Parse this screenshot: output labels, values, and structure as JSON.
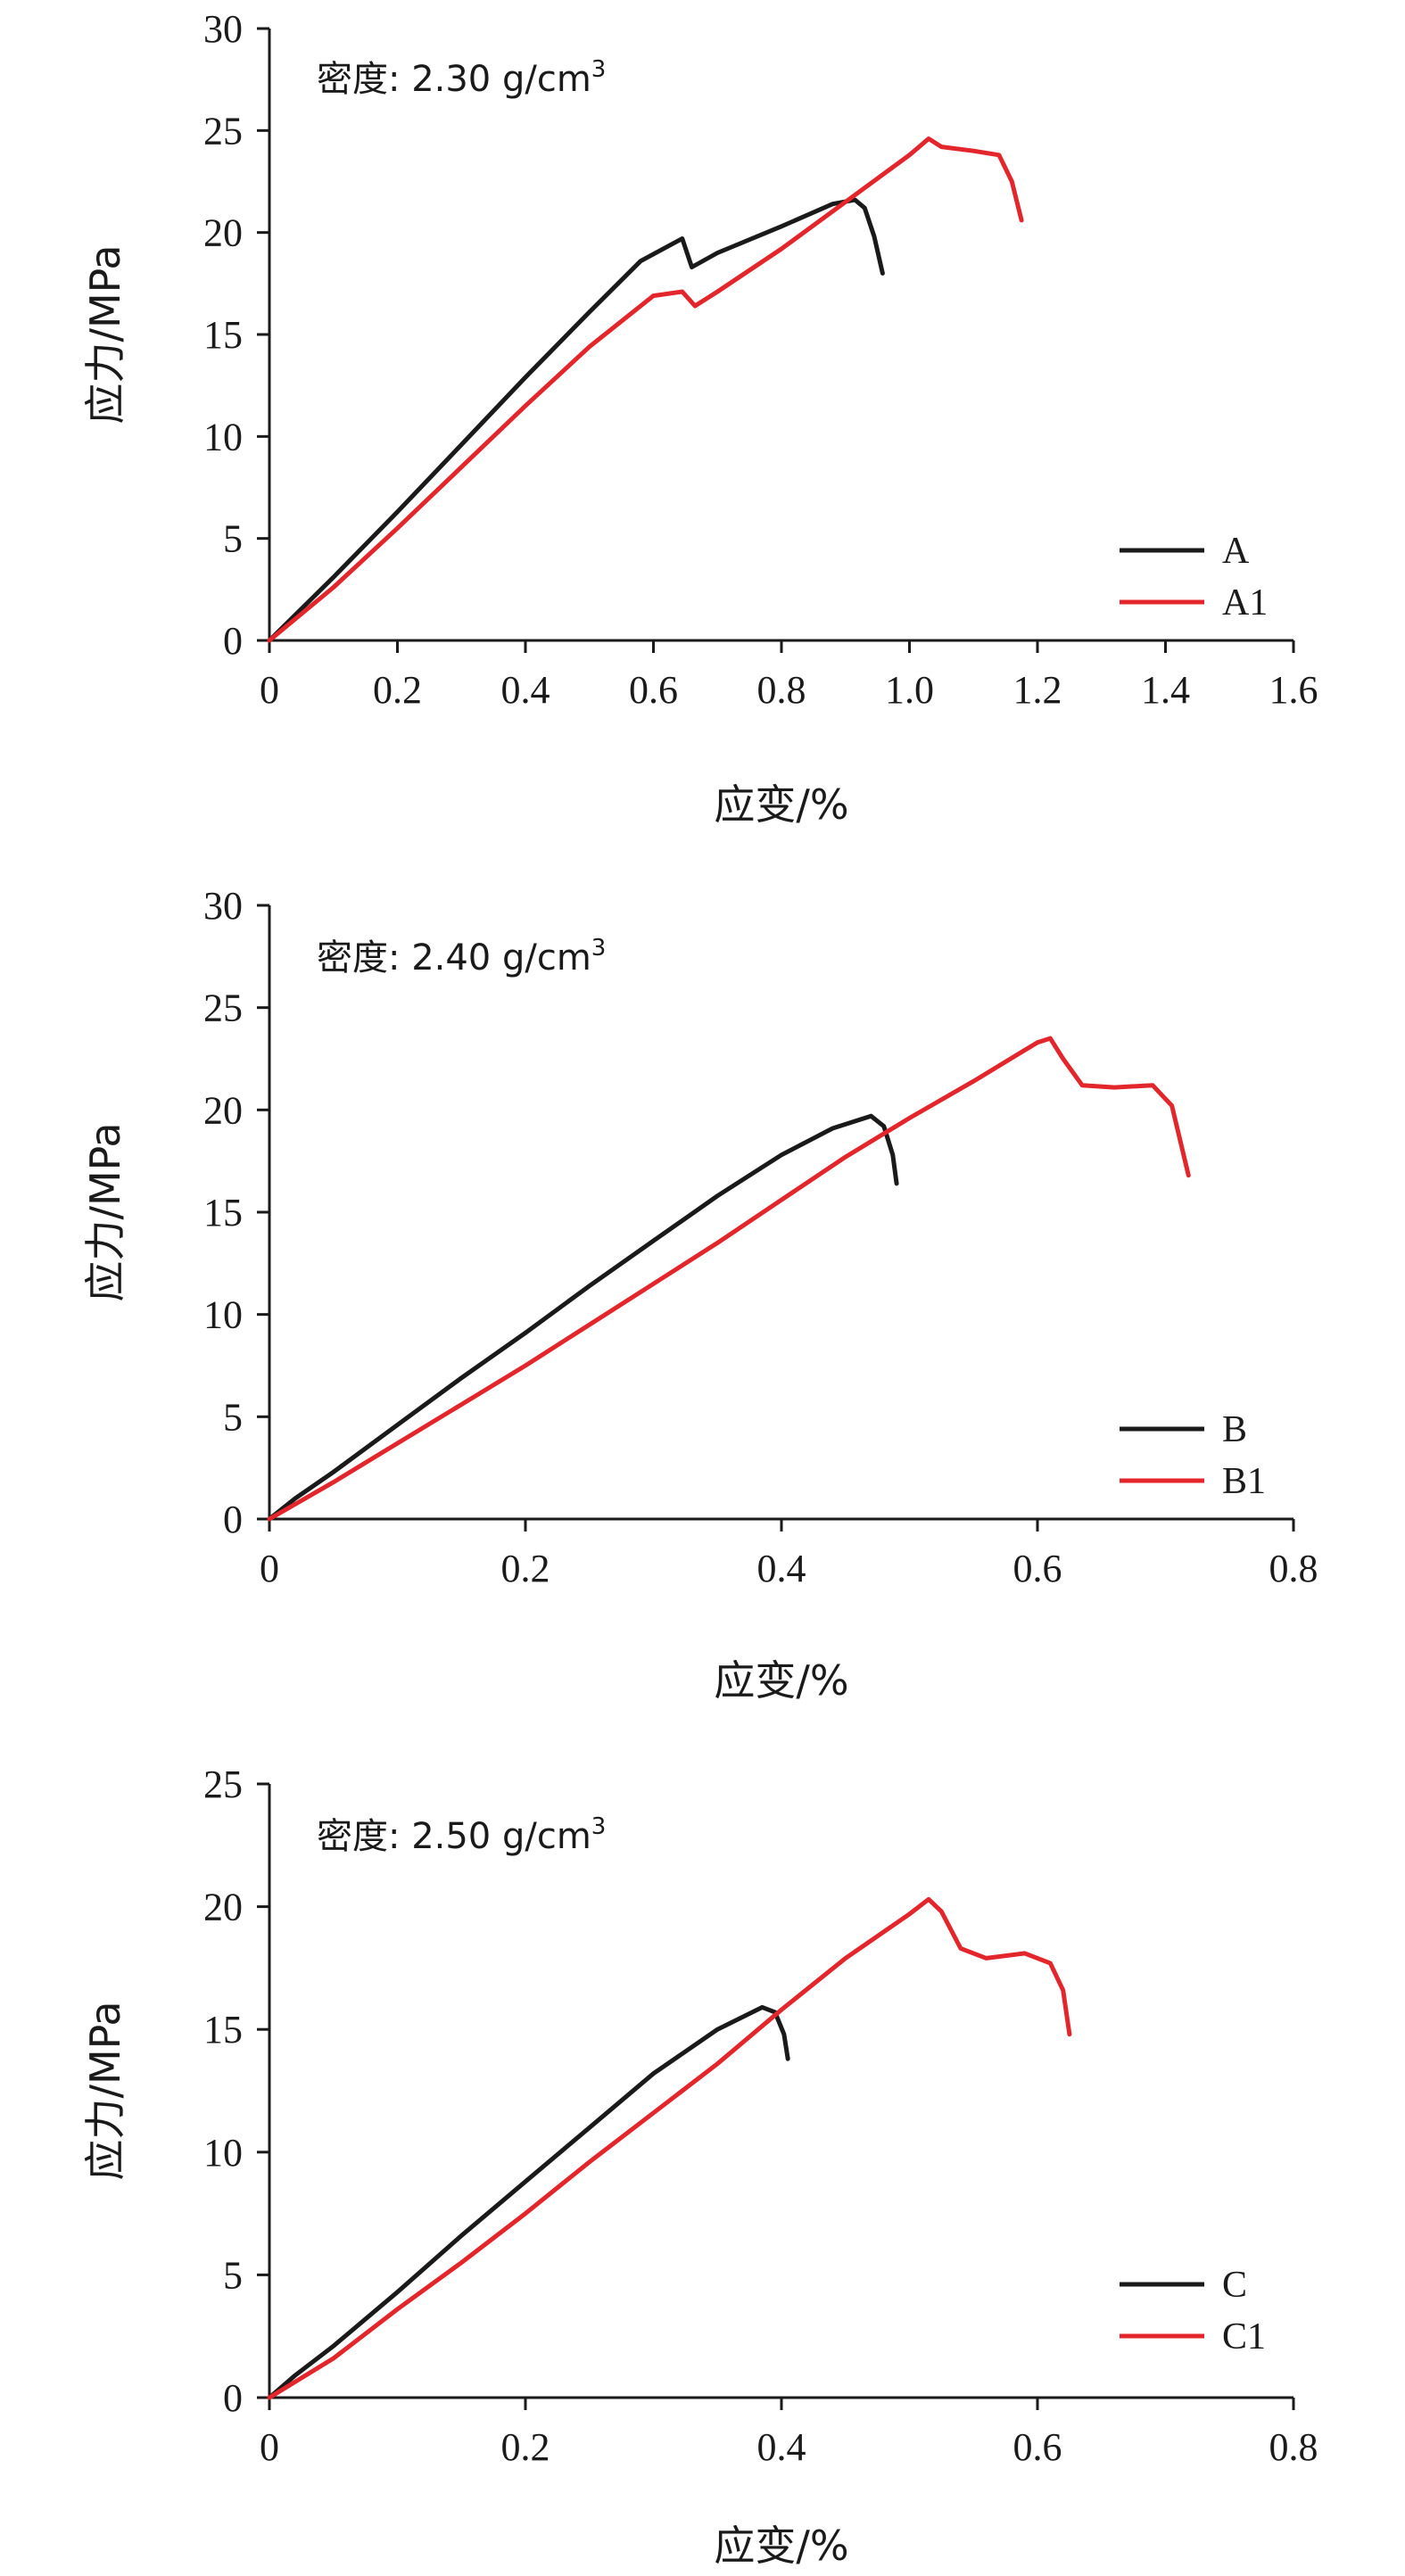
{
  "colors": {
    "black_series": "#1a1a1a",
    "red_series": "#e3262b",
    "axis": "#1a1a1a"
  },
  "chart_data": [
    {
      "type": "line",
      "title": "",
      "annotation": {
        "label": "密度: 2.30 g/cm",
        "superscript": "3"
      },
      "xlabel": "应变/%",
      "ylabel": "应力/MPa",
      "xlim": [
        0,
        1.6
      ],
      "ylim": [
        0,
        30
      ],
      "xticks": [
        "0",
        "0.2",
        "0.4",
        "0.6",
        "0.8",
        "1.0",
        "1.2",
        "1.4",
        "1.6"
      ],
      "yticks": [
        "0",
        "5",
        "10",
        "15",
        "20",
        "25",
        "30"
      ],
      "legend_position": "bottom-right",
      "series": [
        {
          "name": "A",
          "color": "#1a1a1a",
          "points": [
            [
              0,
              0
            ],
            [
              0.1,
              3.1
            ],
            [
              0.2,
              6.3
            ],
            [
              0.3,
              9.6
            ],
            [
              0.4,
              12.9
            ],
            [
              0.5,
              16.1
            ],
            [
              0.58,
              18.6
            ],
            [
              0.645,
              19.7
            ],
            [
              0.66,
              18.3
            ],
            [
              0.7,
              19.0
            ],
            [
              0.8,
              20.3
            ],
            [
              0.88,
              21.4
            ],
            [
              0.915,
              21.6
            ],
            [
              0.93,
              21.2
            ],
            [
              0.945,
              19.8
            ],
            [
              0.958,
              18.0
            ]
          ]
        },
        {
          "name": "A1",
          "color": "#e3262b",
          "points": [
            [
              0,
              0
            ],
            [
              0.1,
              2.6
            ],
            [
              0.2,
              5.5
            ],
            [
              0.3,
              8.5
            ],
            [
              0.4,
              11.5
            ],
            [
              0.5,
              14.4
            ],
            [
              0.6,
              16.9
            ],
            [
              0.645,
              17.1
            ],
            [
              0.665,
              16.4
            ],
            [
              0.7,
              17.1
            ],
            [
              0.8,
              19.2
            ],
            [
              0.9,
              21.5
            ],
            [
              1.0,
              23.8
            ],
            [
              1.03,
              24.6
            ],
            [
              1.05,
              24.2
            ],
            [
              1.1,
              24.0
            ],
            [
              1.14,
              23.8
            ],
            [
              1.16,
              22.5
            ],
            [
              1.175,
              20.6
            ]
          ]
        }
      ]
    },
    {
      "type": "line",
      "title": "",
      "annotation": {
        "label": "密度: 2.40 g/cm",
        "superscript": "3"
      },
      "xlabel": "应变/%",
      "ylabel": "应力/MPa",
      "xlim": [
        0,
        0.8
      ],
      "ylim": [
        0,
        30
      ],
      "xticks": [
        "0",
        "0.2",
        "0.4",
        "0.6",
        "0.8"
      ],
      "yticks": [
        "0",
        "5",
        "10",
        "15",
        "20",
        "25",
        "30"
      ],
      "legend_position": "bottom-right",
      "series": [
        {
          "name": "B",
          "color": "#1a1a1a",
          "points": [
            [
              0,
              0
            ],
            [
              0.02,
              1.0
            ],
            [
              0.05,
              2.3
            ],
            [
              0.1,
              4.6
            ],
            [
              0.15,
              6.9
            ],
            [
              0.2,
              9.1
            ],
            [
              0.25,
              11.4
            ],
            [
              0.3,
              13.6
            ],
            [
              0.35,
              15.8
            ],
            [
              0.4,
              17.8
            ],
            [
              0.44,
              19.1
            ],
            [
              0.47,
              19.7
            ],
            [
              0.48,
              19.2
            ],
            [
              0.487,
              17.8
            ],
            [
              0.49,
              16.4
            ]
          ]
        },
        {
          "name": "B1",
          "color": "#e3262b",
          "points": [
            [
              0,
              0
            ],
            [
              0.05,
              1.8
            ],
            [
              0.1,
              3.7
            ],
            [
              0.15,
              5.6
            ],
            [
              0.2,
              7.5
            ],
            [
              0.25,
              9.5
            ],
            [
              0.3,
              11.5
            ],
            [
              0.35,
              13.5
            ],
            [
              0.4,
              15.6
            ],
            [
              0.45,
              17.7
            ],
            [
              0.5,
              19.6
            ],
            [
              0.55,
              21.4
            ],
            [
              0.6,
              23.3
            ],
            [
              0.61,
              23.5
            ],
            [
              0.62,
              22.5
            ],
            [
              0.635,
              21.2
            ],
            [
              0.66,
              21.1
            ],
            [
              0.69,
              21.2
            ],
            [
              0.705,
              20.2
            ],
            [
              0.718,
              16.8
            ]
          ]
        }
      ]
    },
    {
      "type": "line",
      "title": "",
      "annotation": {
        "label": "密度: 2.50 g/cm",
        "superscript": "3"
      },
      "xlabel": "应变/%",
      "ylabel": "应力/MPa",
      "xlim": [
        0,
        0.8
      ],
      "ylim": [
        0,
        25
      ],
      "xticks": [
        "0",
        "0.2",
        "0.4",
        "0.6",
        "0.8"
      ],
      "yticks": [
        "0",
        "5",
        "10",
        "15",
        "20",
        "25"
      ],
      "legend_position": "bottom-right",
      "series": [
        {
          "name": "C",
          "color": "#1a1a1a",
          "points": [
            [
              0,
              0
            ],
            [
              0.02,
              0.9
            ],
            [
              0.05,
              2.1
            ],
            [
              0.1,
              4.3
            ],
            [
              0.15,
              6.6
            ],
            [
              0.2,
              8.8
            ],
            [
              0.25,
              11.0
            ],
            [
              0.3,
              13.2
            ],
            [
              0.35,
              15.0
            ],
            [
              0.385,
              15.9
            ],
            [
              0.395,
              15.7
            ],
            [
              0.402,
              14.8
            ],
            [
              0.405,
              13.8
            ]
          ]
        },
        {
          "name": "C1",
          "color": "#e3262b",
          "points": [
            [
              0,
              0
            ],
            [
              0.05,
              1.6
            ],
            [
              0.1,
              3.6
            ],
            [
              0.15,
              5.5
            ],
            [
              0.2,
              7.5
            ],
            [
              0.25,
              9.6
            ],
            [
              0.3,
              11.6
            ],
            [
              0.35,
              13.6
            ],
            [
              0.4,
              15.8
            ],
            [
              0.45,
              17.9
            ],
            [
              0.5,
              19.7
            ],
            [
              0.515,
              20.3
            ],
            [
              0.525,
              19.8
            ],
            [
              0.54,
              18.3
            ],
            [
              0.56,
              17.9
            ],
            [
              0.59,
              18.1
            ],
            [
              0.61,
              17.7
            ],
            [
              0.62,
              16.6
            ],
            [
              0.625,
              14.8
            ]
          ]
        }
      ]
    }
  ]
}
